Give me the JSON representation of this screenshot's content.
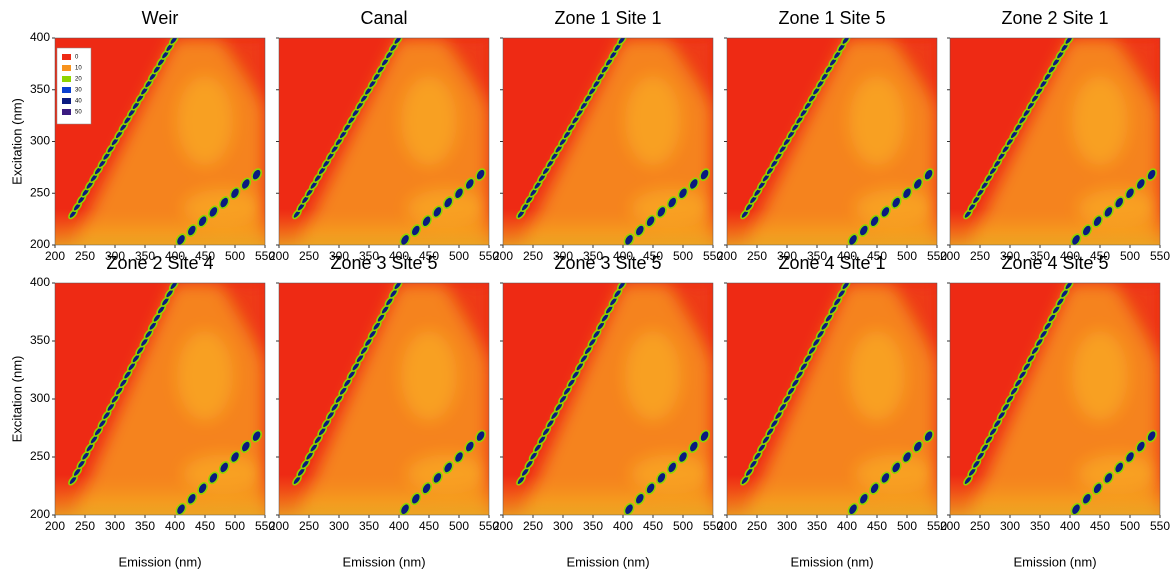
{
  "chart_data": [
    {
      "type": "contour",
      "title": "Weir",
      "ylabel": "Excitation (nm)",
      "xlim": [
        200,
        550
      ],
      "ylim": [
        200,
        400
      ],
      "xticks": [
        200,
        250,
        300,
        350,
        400,
        450,
        500,
        550
      ],
      "yticks": [
        200,
        250,
        300,
        350,
        400
      ],
      "legend": "upper left",
      "levels": [
        {
          "value": 0,
          "color": "#ee2a14"
        },
        {
          "value": 10,
          "color": "#f7931e"
        },
        {
          "value": 20,
          "color": "#8fd400"
        },
        {
          "value": 30,
          "color": "#0a3fd0"
        },
        {
          "value": 40,
          "color": "#0a1a80"
        },
        {
          "value": 50,
          "color": "#3a1a80"
        }
      ]
    },
    {
      "type": "contour",
      "title": "Canal",
      "xlim": [
        200,
        550
      ],
      "ylim": [
        200,
        400
      ],
      "xticks": [
        200,
        250,
        300,
        350,
        400,
        450,
        500,
        550
      ],
      "yticks": [
        200,
        250,
        300,
        350,
        400
      ]
    },
    {
      "type": "contour",
      "title": "Zone 1 Site 1",
      "xlim": [
        200,
        550
      ],
      "ylim": [
        200,
        400
      ],
      "xticks": [
        200,
        250,
        300,
        350,
        400,
        450,
        500,
        550
      ],
      "yticks": [
        200,
        250,
        300,
        350,
        400
      ]
    },
    {
      "type": "contour",
      "title": "Zone 1 Site 5",
      "xlim": [
        200,
        550
      ],
      "ylim": [
        200,
        400
      ],
      "xticks": [
        200,
        250,
        300,
        350,
        400,
        450,
        500,
        550
      ],
      "yticks": [
        200,
        250,
        300,
        350,
        400
      ]
    },
    {
      "type": "contour",
      "title": "Zone 2 Site 1",
      "xlim": [
        200,
        550
      ],
      "ylim": [
        200,
        400
      ],
      "xticks": [
        200,
        250,
        300,
        350,
        400,
        450,
        500,
        550
      ],
      "yticks": [
        200,
        250,
        300,
        350,
        400
      ]
    },
    {
      "type": "contour",
      "title": "Zone 2 Site 4",
      "xlabel": "Emission (nm)",
      "ylabel": "Excitation (nm)",
      "xlim": [
        200,
        550
      ],
      "ylim": [
        200,
        400
      ],
      "xticks": [
        200,
        250,
        300,
        350,
        400,
        450,
        500,
        550
      ],
      "yticks": [
        200,
        250,
        300,
        350,
        400
      ]
    },
    {
      "type": "contour",
      "title": "Zone 3 Site 5",
      "xlabel": "Emission (nm)",
      "xlim": [
        200,
        550
      ],
      "ylim": [
        200,
        400
      ],
      "xticks": [
        200,
        250,
        300,
        350,
        400,
        450,
        500,
        550
      ],
      "yticks": [
        200,
        250,
        300,
        350,
        400
      ]
    },
    {
      "type": "contour",
      "title": "Zone 3 Site 5",
      "xlabel": "Emission (nm)",
      "xlim": [
        200,
        550
      ],
      "ylim": [
        200,
        400
      ],
      "xticks": [
        200,
        250,
        300,
        350,
        400,
        450,
        500,
        550
      ],
      "yticks": [
        200,
        250,
        300,
        350,
        400
      ]
    },
    {
      "type": "contour",
      "title": "Zone 4 Site 1",
      "xlabel": "Emission (nm)",
      "xlim": [
        200,
        550
      ],
      "ylim": [
        200,
        400
      ],
      "xticks": [
        200,
        250,
        300,
        350,
        400,
        450,
        500,
        550
      ],
      "yticks": [
        200,
        250,
        300,
        350,
        400
      ]
    },
    {
      "type": "contour",
      "title": "Zone 4 Site 5",
      "xlabel": "Emission (nm)",
      "xlim": [
        200,
        550
      ],
      "ylim": [
        200,
        400
      ],
      "xticks": [
        200,
        250,
        300,
        350,
        400,
        450,
        500,
        550
      ],
      "yticks": [
        200,
        250,
        300,
        350,
        400
      ]
    }
  ]
}
